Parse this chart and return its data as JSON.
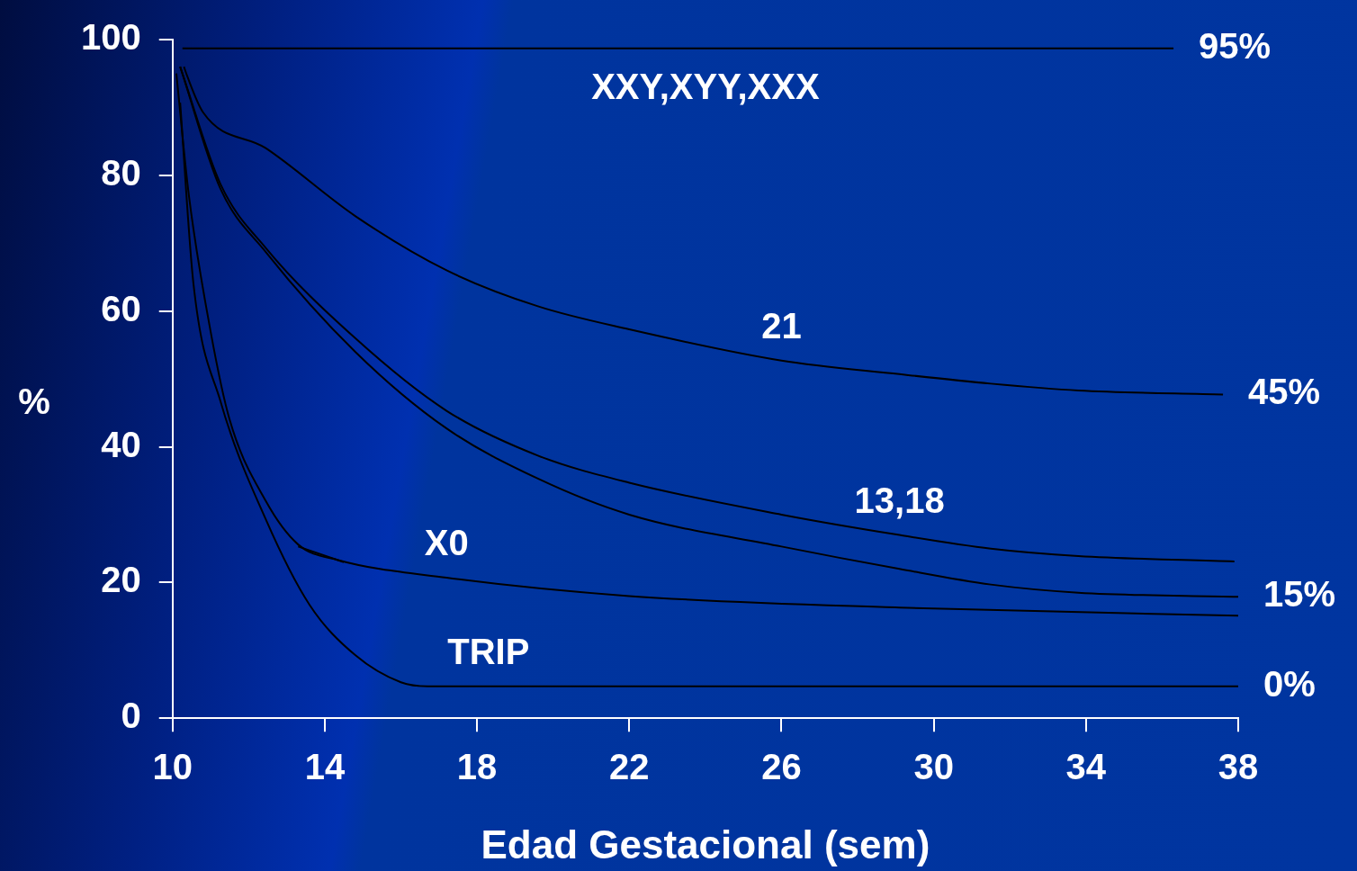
{
  "chart_data": {
    "type": "line",
    "xlabel": "Edad Gestacional (sem)",
    "ylabel": "%",
    "xlim": [
      10,
      38
    ],
    "xticks": [
      10,
      14,
      18,
      22,
      26,
      30,
      34,
      38
    ],
    "ylim": [
      0,
      100
    ],
    "yticks": [
      0,
      20,
      40,
      60,
      80,
      100
    ],
    "grid": false,
    "legend": false,
    "marker": "none",
    "line_style": "solid",
    "series": [
      {
        "color": "#000000",
        "x": [
          10.26,
          36.3
        ],
        "values": [
          98.7,
          98.7
        ]
      },
      {
        "color": "#000000",
        "x": [
          10.3,
          10.38,
          10.8,
          12.45,
          14.8,
          17.2,
          19.6,
          22,
          26,
          29.1,
          31.5,
          33.8,
          37.6
        ],
        "values": [
          96,
          94.7,
          89.3,
          84,
          74,
          66,
          60.7,
          57.3,
          52.7,
          50.7,
          49.3,
          48.3,
          47.7
        ]
      },
      {
        "color": "#000000",
        "x": [
          10.2,
          11.26,
          12.45,
          14.8,
          17.2,
          19.6,
          22,
          26,
          29.1,
          31.5,
          33.8,
          37.9
        ],
        "values": [
          96,
          78.7,
          69.3,
          56,
          45.3,
          38.7,
          34.7,
          30,
          27,
          25,
          23.9,
          23.1
        ]
      },
      {
        "color": "#000000",
        "x": [
          10.2,
          11.26,
          12.45,
          14.8,
          17.2,
          19.6,
          22,
          26,
          29.1,
          31.5,
          33.8,
          38
        ],
        "values": [
          96,
          78,
          68.7,
          54,
          42.7,
          35.3,
          30,
          25.3,
          22,
          19.7,
          18.5,
          17.9
        ]
      },
      {
        "color": "#000000",
        "x": [
          10.1,
          10.43,
          11,
          11.5,
          12.45,
          13.3,
          14.35,
          17.2,
          22,
          29.1,
          38
        ],
        "values": [
          95,
          77,
          57,
          44,
          32,
          25.6,
          23.3,
          20.7,
          18,
          16.3,
          15.1
        ]
      },
      {
        "color": "#000000",
        "x": [
          13.3,
          14.5
        ],
        "values": [
          25.3,
          23
        ]
      },
      {
        "color": "#000000",
        "x": [
          10.2,
          10.55,
          11.26,
          12.45,
          13.6,
          14.8,
          16,
          16.7,
          38
        ],
        "values": [
          90.7,
          64,
          46.7,
          29.3,
          16.7,
          9.3,
          5.3,
          4.7,
          4.7
        ]
      }
    ],
    "annotations": [
      {
        "text": "XXY,XYY,XXX",
        "x": 24,
        "y": 98.7
      },
      {
        "text": "21",
        "x": 26,
        "y": 52.7
      },
      {
        "text": "13,18",
        "x": 29.1,
        "y": 27
      },
      {
        "text": "X0",
        "x": 17.2,
        "y": 20.7
      },
      {
        "text": "TRIP",
        "x": 18.3,
        "y": 4.7
      },
      {
        "text": "95%",
        "x": 36.3,
        "y": 98.7
      },
      {
        "text": "45%",
        "x": 37.6,
        "y": 47.7
      },
      {
        "text": "15%",
        "x": 38,
        "y": 17.9
      },
      {
        "text": "0%",
        "x": 38,
        "y": 4.7
      }
    ]
  }
}
